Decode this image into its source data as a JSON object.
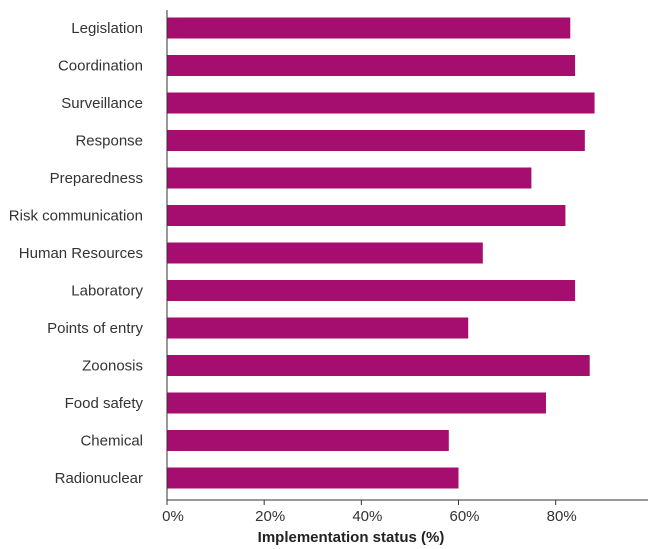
{
  "chart_data": {
    "type": "bar",
    "orientation": "horizontal",
    "categories": [
      "Legislation",
      "Coordination",
      "Surveillance",
      "Response",
      "Preparedness",
      "Risk communication",
      "Human Resources",
      "Laboratory",
      "Points of entry",
      "Zoonosis",
      "Food safety",
      "Chemical",
      "Radionuclear"
    ],
    "values": [
      83,
      84,
      88,
      86,
      75,
      82,
      65,
      84,
      62,
      87,
      78,
      58,
      60
    ],
    "title": "",
    "xlabel": "Implementation status (%)",
    "ylabel": "",
    "xlim": [
      0,
      99
    ],
    "xticks": [
      0,
      20,
      40,
      60,
      80
    ],
    "xtick_labels": [
      "0%",
      "20%",
      "40%",
      "60%",
      "80%"
    ],
    "grid": false,
    "bar_color": "#a50d6e",
    "axis_color": "#333333"
  }
}
